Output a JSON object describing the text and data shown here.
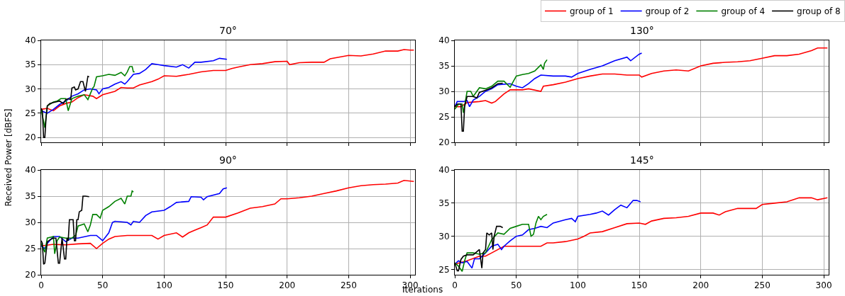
{
  "chart_data": [
    {
      "type": "line",
      "title": "70°",
      "ylabel": "Received Power [dBFS]",
      "legend": "top right",
      "grid": true,
      "tick_labels": "y",
      "xlim": [
        0,
        304
      ],
      "xticks": [
        0,
        50,
        100,
        150,
        200,
        250,
        300
      ],
      "ylim": [
        19,
        40
      ],
      "yticks": [
        20,
        25,
        30,
        35,
        40
      ],
      "series": [
        {
          "name": "group of 1",
          "color": "#ff0000",
          "x": [
            0,
            5,
            10,
            15,
            20,
            25,
            30,
            35,
            42,
            45,
            50,
            60,
            65,
            70,
            75,
            80,
            90,
            95,
            100,
            110,
            120,
            130,
            140,
            150,
            155,
            160,
            170,
            180,
            190,
            200,
            202,
            210,
            220,
            230,
            235,
            250,
            260,
            270,
            280,
            290,
            295,
            300,
            303
          ],
          "values": [
            25.8,
            26,
            25.5,
            26.5,
            27,
            27.3,
            28.2,
            28.8,
            28.5,
            28,
            28.8,
            29.5,
            30.3,
            30.2,
            30.2,
            30.8,
            31.5,
            32,
            32.7,
            32.6,
            33,
            33.5,
            33.8,
            33.8,
            34.2,
            34.5,
            35,
            35.2,
            35.6,
            35.7,
            35,
            35.4,
            35.5,
            35.5,
            36.2,
            36.9,
            36.8,
            37.2,
            37.8,
            37.8,
            38.1,
            38,
            38
          ]
        },
        {
          "name": "group of 2",
          "color": "#0000ff",
          "x": [
            0,
            5,
            10,
            15,
            20,
            25,
            30,
            35,
            40,
            45,
            47,
            50,
            55,
            60,
            65,
            68,
            70,
            75,
            80,
            85,
            90,
            95,
            100,
            110,
            115,
            120,
            125,
            130,
            140,
            145,
            151
          ],
          "values": [
            25.5,
            25,
            25.8,
            26.8,
            27.5,
            28.5,
            29,
            29.8,
            30,
            29.8,
            29,
            30,
            30.3,
            31,
            31.5,
            31,
            31.5,
            33,
            33.2,
            34,
            35.2,
            35,
            34.8,
            34.5,
            35,
            34.3,
            35.5,
            35.5,
            35.8,
            36.3,
            36.1
          ]
        },
        {
          "name": "group of 4",
          "color": "#008000",
          "x": [
            0,
            3,
            5,
            10,
            13,
            16,
            20,
            22,
            25,
            30,
            35,
            38,
            40,
            42,
            43,
            45,
            50,
            55,
            60,
            65,
            68,
            70,
            72,
            74,
            75,
            76
          ],
          "values": [
            25.8,
            22,
            26.5,
            27.3,
            27.5,
            28,
            28,
            25.5,
            28,
            28.5,
            28.8,
            27.8,
            29,
            30.2,
            30.5,
            32.5,
            32.7,
            33,
            32.8,
            33.4,
            32.7,
            33.5,
            34.6,
            34.6,
            33.5,
            33.5
          ]
        },
        {
          "name": "group of 8",
          "color": "#000000",
          "x": [
            0,
            1,
            2,
            3,
            4,
            5,
            7,
            10,
            15,
            18,
            20,
            22,
            24,
            25,
            27,
            28,
            30,
            32,
            34,
            36,
            37,
            38,
            39
          ],
          "values": [
            26,
            25.5,
            20,
            20,
            24,
            26.5,
            27,
            27.2,
            27.5,
            27,
            27.8,
            28,
            27.8,
            30.2,
            30.4,
            29.8,
            30,
            31.5,
            31.5,
            29.5,
            31,
            32.6,
            32.5
          ]
        }
      ]
    },
    {
      "type": "line",
      "title": "130°",
      "grid": true,
      "tick_labels": "y",
      "xlim": [
        0,
        304
      ],
      "xticks": [
        0,
        50,
        100,
        150,
        200,
        250,
        300
      ],
      "ylim": [
        20,
        40
      ],
      "yticks": [
        20,
        25,
        30,
        35,
        40
      ],
      "series": [
        {
          "color": "#ff0000",
          "x": [
            0,
            5,
            10,
            20,
            25,
            30,
            33,
            40,
            45,
            55,
            60,
            70,
            72,
            80,
            90,
            100,
            110,
            120,
            130,
            140,
            150,
            152,
            160,
            170,
            180,
            190,
            200,
            210,
            220,
            230,
            240,
            250,
            260,
            270,
            280,
            290,
            295,
            303
          ],
          "values": [
            27,
            27,
            27.8,
            28,
            28.2,
            27.7,
            28,
            29.5,
            30.3,
            30.3,
            30.5,
            30,
            31,
            31.3,
            31.8,
            32.5,
            33,
            33.4,
            33.4,
            33.2,
            33.2,
            32.8,
            33.5,
            34,
            34.2,
            34,
            35,
            35.5,
            35.7,
            35.8,
            36,
            36.5,
            37,
            37,
            37.3,
            38,
            38.5,
            38.5
          ]
        },
        {
          "color": "#0000ff",
          "x": [
            0,
            2,
            7,
            10,
            12,
            15,
            20,
            25,
            30,
            35,
            45,
            50,
            55,
            60,
            65,
            70,
            80,
            90,
            95,
            100,
            110,
            120,
            130,
            140,
            143,
            150,
            152
          ],
          "values": [
            27,
            28,
            28,
            28.2,
            27,
            28.3,
            29,
            30,
            30.5,
            31.3,
            31.5,
            31,
            30.7,
            31.5,
            32.5,
            33.2,
            33,
            33,
            32.8,
            33.5,
            34.3,
            35,
            36,
            36.7,
            36,
            37.3,
            37.5
          ]
        },
        {
          "color": "#008000",
          "x": [
            0,
            3,
            6,
            7,
            10,
            13,
            15,
            20,
            25,
            30,
            35,
            40,
            45,
            50,
            55,
            60,
            65,
            70,
            72,
            73,
            75
          ],
          "values": [
            26.5,
            27.5,
            27.5,
            25.8,
            30,
            30,
            29,
            30.7,
            30.5,
            31,
            32,
            32,
            30.8,
            33,
            33.3,
            33.5,
            34,
            35.2,
            34.3,
            35.5,
            36.2
          ]
        },
        {
          "color": "#000000",
          "x": [
            0,
            2,
            5,
            6,
            7,
            8,
            10,
            15,
            18,
            20,
            25,
            30,
            35,
            39
          ],
          "values": [
            27,
            27.5,
            27.5,
            22.2,
            22.2,
            27,
            29,
            29,
            28.7,
            29.8,
            30.2,
            30.7,
            31.5,
            31.6
          ]
        }
      ]
    },
    {
      "type": "line",
      "title": "90°",
      "xlabel": "Iterations",
      "grid": true,
      "xlim": [
        0,
        304
      ],
      "xticks": [
        0,
        50,
        100,
        150,
        200,
        250,
        300
      ],
      "ylim": [
        20,
        40
      ],
      "yticks": [
        20,
        25,
        30,
        35,
        40
      ],
      "series": [
        {
          "color": "#ff0000",
          "x": [
            0,
            10,
            20,
            30,
            40,
            45,
            50,
            55,
            60,
            70,
            80,
            90,
            95,
            100,
            110,
            115,
            120,
            125,
            130,
            135,
            140,
            150,
            160,
            170,
            180,
            190,
            195,
            200,
            210,
            220,
            230,
            240,
            250,
            260,
            270,
            280,
            290,
            295,
            303
          ],
          "values": [
            25.5,
            25.8,
            25.7,
            25.9,
            26,
            25,
            26,
            26.8,
            27.3,
            27.5,
            27.5,
            27.5,
            26.8,
            27.5,
            28,
            27.2,
            28,
            28.5,
            29,
            29.5,
            31,
            31,
            31.8,
            32.7,
            33,
            33.5,
            34.5,
            34.5,
            34.7,
            35,
            35.5,
            36,
            36.6,
            37,
            37.2,
            37.3,
            37.5,
            38,
            37.8
          ]
        },
        {
          "color": "#0000ff",
          "x": [
            0,
            3,
            5,
            10,
            15,
            20,
            25,
            30,
            40,
            45,
            50,
            55,
            58,
            60,
            70,
            73,
            75,
            80,
            85,
            90,
            100,
            105,
            110,
            120,
            122,
            130,
            132,
            135,
            145,
            148,
            151
          ],
          "values": [
            25.5,
            25,
            26,
            27.3,
            27.3,
            26.3,
            27,
            27,
            27.5,
            27.5,
            26.5,
            28,
            30,
            30.2,
            30,
            29.5,
            30.2,
            30,
            31.3,
            32,
            32.3,
            33,
            33.8,
            34,
            34.9,
            34.8,
            34.3,
            34.9,
            35.5,
            36.4,
            36.6
          ]
        },
        {
          "color": "#008000",
          "x": [
            0,
            3,
            5,
            10,
            11,
            13,
            15,
            20,
            25,
            28,
            30,
            35,
            38,
            40,
            42,
            45,
            48,
            50,
            55,
            60,
            65,
            68,
            70,
            73,
            74,
            75
          ],
          "values": [
            26,
            24.3,
            27,
            27.3,
            24,
            26.5,
            27.2,
            27,
            27,
            27.5,
            29.3,
            29.7,
            28.2,
            29.5,
            31.5,
            31.5,
            30.8,
            32.3,
            33,
            34,
            34.6,
            33.5,
            35,
            35,
            36,
            35.8
          ]
        },
        {
          "color": "#000000",
          "x": [
            0,
            1,
            2,
            3,
            5,
            8,
            10,
            12,
            14,
            15,
            17,
            19,
            20,
            21,
            22,
            23,
            26,
            27,
            28,
            29,
            30,
            31,
            33,
            34,
            36,
            39
          ],
          "values": [
            26.5,
            26,
            22,
            22.2,
            26.3,
            26.8,
            27,
            27,
            22.2,
            22.2,
            27,
            23,
            23,
            27,
            26.5,
            30.5,
            30.5,
            26.5,
            26.5,
            30.5,
            30.5,
            32,
            32.3,
            35,
            35,
            34.9
          ]
        }
      ]
    },
    {
      "type": "line",
      "title": "145°",
      "grid": true,
      "xlim": [
        0,
        304
      ],
      "xticks": [
        0,
        50,
        100,
        150,
        200,
        250,
        300
      ],
      "ylim": [
        24.2,
        40
      ],
      "yticks": [
        25,
        30,
        35,
        40
      ],
      "series": [
        {
          "color": "#ff0000",
          "x": [
            0,
            10,
            20,
            25,
            30,
            40,
            50,
            60,
            70,
            75,
            80,
            90,
            100,
            105,
            110,
            120,
            130,
            140,
            150,
            155,
            160,
            170,
            180,
            190,
            200,
            210,
            215,
            220,
            230,
            245,
            250,
            260,
            270,
            280,
            290,
            295,
            303
          ],
          "values": [
            25.8,
            26.3,
            27,
            27,
            27.5,
            28.5,
            28.5,
            28.5,
            28.5,
            29,
            29,
            29.2,
            29.6,
            30,
            30.5,
            30.7,
            31.3,
            31.9,
            32,
            31.8,
            32.3,
            32.7,
            32.8,
            33,
            33.5,
            33.5,
            33.2,
            33.7,
            34.2,
            34.2,
            34.8,
            35,
            35.2,
            35.8,
            35.8,
            35.5,
            35.8
          ]
        },
        {
          "color": "#0000ff",
          "x": [
            0,
            3,
            6,
            10,
            14,
            16,
            20,
            25,
            30,
            35,
            38,
            40,
            45,
            50,
            55,
            60,
            65,
            70,
            75,
            80,
            90,
            95,
            98,
            100,
            110,
            115,
            120,
            125,
            130,
            135,
            140,
            145,
            148,
            151
          ],
          "values": [
            25.8,
            26.3,
            26,
            26.2,
            25.2,
            26.6,
            26.6,
            27.5,
            28.5,
            28.8,
            28,
            28.5,
            29.3,
            30,
            30.2,
            31,
            31.2,
            31.5,
            31.3,
            32,
            32.5,
            32.7,
            32.2,
            33,
            33.3,
            33.5,
            33.8,
            33.2,
            34,
            34.7,
            34.3,
            35.4,
            35.4,
            35.2
          ]
        },
        {
          "color": "#008000",
          "x": [
            0,
            3,
            6,
            8,
            10,
            15,
            20,
            25,
            30,
            35,
            40,
            45,
            50,
            55,
            60,
            62,
            64,
            66,
            68,
            70,
            72,
            75
          ],
          "values": [
            26,
            25.5,
            24.7,
            26.3,
            27.5,
            27.5,
            27.3,
            27.5,
            29.5,
            30.5,
            30.3,
            31.2,
            31.5,
            31.8,
            31.8,
            30,
            30.3,
            32,
            33,
            32.5,
            33,
            33.3
          ]
        },
        {
          "color": "#000000",
          "x": [
            0,
            2,
            3,
            5,
            7,
            10,
            15,
            20,
            22,
            23,
            25,
            26,
            28,
            30,
            31,
            32,
            34,
            37,
            39
          ],
          "values": [
            26,
            24.8,
            24.8,
            26.5,
            27,
            27.2,
            27.2,
            28,
            25.2,
            27.5,
            28,
            30.5,
            30.2,
            30.5,
            28,
            30,
            31.5,
            31.5,
            31.3
          ]
        }
      ]
    }
  ]
}
